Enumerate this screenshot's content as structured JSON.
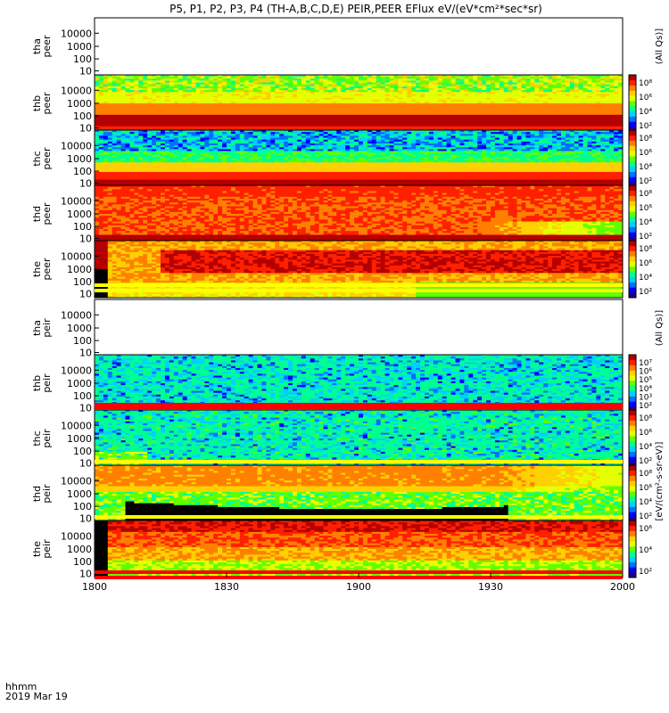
{
  "title": "P5, P1, P2, P3, P4 (TH-A,B,C,D,E) PEIR,PEER EFlux eV/(eV*cm²*sec*sr)",
  "footer": {
    "label_line1": "hhmm",
    "label_line2": "2019 Mar 19"
  },
  "colors": {
    "colormap": [
      "#22007a",
      "#0000ff",
      "#0070ff",
      "#00d0ff",
      "#00ff90",
      "#60ff00",
      "#e6ff00",
      "#ffd000",
      "#ff8000",
      "#ff2000",
      "#b40000"
    ],
    "flag_red": "#ff0000",
    "flag_yellow": "#ffff00",
    "fill_gap": "#000000"
  },
  "chart_data": {
    "type": "heatmap",
    "x_axis": {
      "range": [
        1800,
        2000
      ],
      "ticks": [
        "1800",
        "1830",
        "1900",
        "1930",
        "2000"
      ],
      "label": "hhmm"
    },
    "y_ticks": [
      "10",
      "100",
      "1000",
      "10000"
    ],
    "panels": [
      {
        "probe": "tha",
        "species": "peer",
        "ylabel": "tha\npeer",
        "has_data": false,
        "right_label": "(All Qs)]"
      },
      {
        "probe": "thb",
        "species": "peer",
        "ylabel": "thb\npeer",
        "has_data": true,
        "cbar_ticks": [
          "10⁸",
          "10⁶",
          "10⁴",
          "10²"
        ],
        "pattern": "peer_noisy_top"
      },
      {
        "probe": "thc",
        "species": "peer",
        "ylabel": "thc\npeer",
        "has_data": true,
        "cbar_ticks": [
          "10⁸",
          "10⁶",
          "10⁴",
          "10²"
        ],
        "pattern": "peer_noisy_blue"
      },
      {
        "probe": "thd",
        "species": "peer",
        "ylabel": "thd\npeer",
        "has_data": true,
        "cbar_ticks": [
          "10⁸",
          "10⁶",
          "10⁴",
          "10²"
        ],
        "pattern": "peer_warm"
      },
      {
        "probe": "the",
        "species": "peer",
        "ylabel": "the\npeer",
        "has_data": true,
        "cbar_ticks": [
          "10⁸",
          "10⁶",
          "10⁴",
          "10²"
        ],
        "pattern": "peer_the"
      },
      {
        "probe": "tha",
        "species": "peir",
        "ylabel": "tha\npeir",
        "has_data": false,
        "right_label": "(All Qs)]"
      },
      {
        "probe": "thb",
        "species": "peir",
        "ylabel": "thb\npeir",
        "has_data": true,
        "cbar_ticks": [
          "10⁷",
          "10⁶",
          "10⁵",
          "10⁴",
          "10³",
          "10²"
        ],
        "pattern": "peir_cyan"
      },
      {
        "probe": "thc",
        "species": "peir",
        "ylabel": "thc\npeir",
        "has_data": true,
        "cbar_ticks": [
          "10⁸",
          "10⁶",
          "10⁴",
          "10²"
        ],
        "pattern": "peir_cyan2"
      },
      {
        "probe": "thd",
        "species": "peir",
        "ylabel": "thd\npeir",
        "has_data": true,
        "cbar_ticks": [
          "10⁸",
          "10⁶",
          "10⁴",
          "10²"
        ],
        "pattern": "peir_thd"
      },
      {
        "probe": "the",
        "species": "peir",
        "ylabel": "the\npeir",
        "has_data": true,
        "cbar_ticks": [
          "10⁶",
          "10⁴",
          "10²"
        ],
        "pattern": "peir_the"
      }
    ],
    "colorbar_label": "[eV/(cm²-s-sr-eV)]"
  }
}
